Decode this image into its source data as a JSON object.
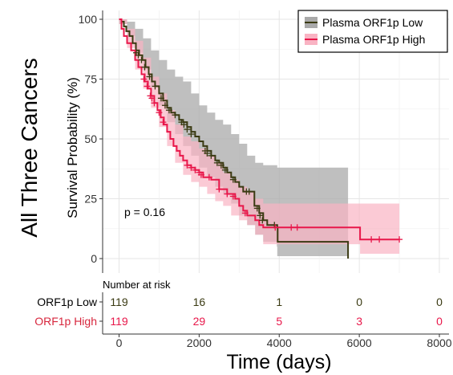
{
  "chart_data": {
    "type": "line",
    "subtype": "kaplan-meier",
    "side_title": "All Three Cancers",
    "ylabel": "Survival Probability (%)",
    "xlabel": "Time (days)",
    "p_value_text": "p = 0.16",
    "xlim": [
      0,
      8000
    ],
    "ylim": [
      0,
      100
    ],
    "x_ticks": [
      0,
      2000,
      4000,
      6000,
      8000
    ],
    "y_ticks": [
      0,
      25,
      50,
      75,
      100
    ],
    "grid": true,
    "legend_position": "top-right",
    "series": [
      {
        "name": "Plasma ORF1p Low",
        "color": "#3a3a12",
        "band_color": "#a9a9a9",
        "curve": [
          [
            0,
            100
          ],
          [
            60,
            99
          ],
          [
            120,
            97
          ],
          [
            180,
            95
          ],
          [
            260,
            93
          ],
          [
            340,
            90
          ],
          [
            420,
            87
          ],
          [
            500,
            85
          ],
          [
            580,
            83
          ],
          [
            660,
            80
          ],
          [
            740,
            77
          ],
          [
            820,
            74
          ],
          [
            900,
            72
          ],
          [
            1000,
            69
          ],
          [
            1100,
            66
          ],
          [
            1200,
            63
          ],
          [
            1300,
            61
          ],
          [
            1400,
            60
          ],
          [
            1500,
            58
          ],
          [
            1600,
            57
          ],
          [
            1700,
            55
          ],
          [
            1800,
            53
          ],
          [
            1900,
            51
          ],
          [
            2000,
            49
          ],
          [
            2100,
            47
          ],
          [
            2200,
            45
          ],
          [
            2300,
            43
          ],
          [
            2400,
            41
          ],
          [
            2500,
            40
          ],
          [
            2600,
            38
          ],
          [
            2700,
            36
          ],
          [
            2800,
            34
          ],
          [
            2900,
            32
          ],
          [
            3000,
            30
          ],
          [
            3100,
            28
          ],
          [
            3300,
            28
          ],
          [
            3380,
            22
          ],
          [
            3500,
            19
          ],
          [
            3600,
            16
          ],
          [
            3700,
            14
          ],
          [
            3940,
            14
          ],
          [
            3950,
            13
          ],
          [
            3960,
            7
          ],
          [
            5700,
            7
          ],
          [
            5720,
            0
          ]
        ],
        "ci_upper": [
          [
            0,
            100
          ],
          [
            200,
            99
          ],
          [
            400,
            96
          ],
          [
            600,
            92
          ],
          [
            800,
            87
          ],
          [
            1000,
            83
          ],
          [
            1200,
            79
          ],
          [
            1400,
            76
          ],
          [
            1600,
            74
          ],
          [
            1800,
            69
          ],
          [
            2000,
            64
          ],
          [
            2200,
            61
          ],
          [
            2400,
            58
          ],
          [
            2600,
            56
          ],
          [
            2800,
            52
          ],
          [
            3000,
            48
          ],
          [
            3200,
            43
          ],
          [
            3400,
            40
          ],
          [
            3600,
            39
          ],
          [
            3940,
            39
          ],
          [
            3950,
            38
          ],
          [
            5720,
            38
          ]
        ],
        "ci_lower": [
          [
            0,
            98
          ],
          [
            200,
            93
          ],
          [
            400,
            86
          ],
          [
            600,
            79
          ],
          [
            800,
            72
          ],
          [
            1000,
            64
          ],
          [
            1200,
            57
          ],
          [
            1400,
            52
          ],
          [
            1600,
            47
          ],
          [
            1800,
            43
          ],
          [
            2000,
            38
          ],
          [
            2200,
            34
          ],
          [
            2400,
            30
          ],
          [
            2600,
            27
          ],
          [
            2800,
            23
          ],
          [
            3000,
            18
          ],
          [
            3200,
            14
          ],
          [
            3400,
            10
          ],
          [
            3600,
            7
          ],
          [
            3940,
            5
          ],
          [
            3950,
            1
          ],
          [
            5720,
            1
          ]
        ],
        "censor_marks": [
          [
            430,
            86
          ],
          [
            480,
            85
          ],
          [
            560,
            83
          ],
          [
            640,
            80
          ],
          [
            760,
            76
          ],
          [
            900,
            72
          ],
          [
            1050,
            67
          ],
          [
            1150,
            64
          ],
          [
            1250,
            62
          ],
          [
            1400,
            60
          ],
          [
            1560,
            57
          ],
          [
            1620,
            56
          ],
          [
            1700,
            54
          ],
          [
            1800,
            52
          ],
          [
            2150,
            45
          ],
          [
            2200,
            44
          ],
          [
            2300,
            43
          ],
          [
            2450,
            40
          ],
          [
            2550,
            39
          ],
          [
            2650,
            37
          ],
          [
            2850,
            33
          ],
          [
            3180,
            28
          ],
          [
            3250,
            28
          ],
          [
            3450,
            21
          ],
          [
            3520,
            18
          ],
          [
            3580,
            16
          ],
          [
            3880,
            14
          ]
        ],
        "risk_counts": [
          119,
          16,
          1,
          0,
          0
        ]
      },
      {
        "name": "Plasma ORF1p High",
        "color": "#e8174a",
        "band_color": "#f9b3c3",
        "curve": [
          [
            0,
            100
          ],
          [
            60,
            96
          ],
          [
            120,
            93
          ],
          [
            200,
            90
          ],
          [
            300,
            87
          ],
          [
            400,
            83
          ],
          [
            480,
            80
          ],
          [
            560,
            77
          ],
          [
            640,
            74
          ],
          [
            720,
            71
          ],
          [
            800,
            68
          ],
          [
            880,
            65
          ],
          [
            960,
            62
          ],
          [
            1040,
            59
          ],
          [
            1120,
            56
          ],
          [
            1200,
            53
          ],
          [
            1280,
            50
          ],
          [
            1360,
            47
          ],
          [
            1440,
            45
          ],
          [
            1520,
            43
          ],
          [
            1600,
            41
          ],
          [
            1700,
            39
          ],
          [
            1800,
            38
          ],
          [
            1900,
            37
          ],
          [
            2000,
            36
          ],
          [
            2100,
            34
          ],
          [
            2300,
            33
          ],
          [
            2500,
            29
          ],
          [
            2700,
            27
          ],
          [
            2900,
            25
          ],
          [
            3000,
            22
          ],
          [
            3100,
            20
          ],
          [
            3200,
            18
          ],
          [
            3400,
            16
          ],
          [
            3500,
            14
          ],
          [
            3600,
            13
          ],
          [
            6000,
            13
          ],
          [
            6020,
            8
          ],
          [
            7000,
            8
          ]
        ],
        "ci_upper": [
          [
            0,
            100
          ],
          [
            200,
            96
          ],
          [
            400,
            91
          ],
          [
            600,
            84
          ],
          [
            800,
            76
          ],
          [
            1000,
            69
          ],
          [
            1200,
            62
          ],
          [
            1400,
            56
          ],
          [
            1600,
            51
          ],
          [
            1800,
            49
          ],
          [
            2000,
            46
          ],
          [
            2200,
            43
          ],
          [
            2400,
            40
          ],
          [
            2600,
            36
          ],
          [
            2800,
            33
          ],
          [
            3000,
            30
          ],
          [
            3200,
            28
          ],
          [
            3400,
            25
          ],
          [
            3600,
            23
          ],
          [
            6000,
            23
          ],
          [
            7000,
            23
          ]
        ],
        "ci_lower": [
          [
            0,
            98
          ],
          [
            200,
            88
          ],
          [
            400,
            79
          ],
          [
            600,
            71
          ],
          [
            800,
            63
          ],
          [
            1000,
            55
          ],
          [
            1200,
            47
          ],
          [
            1400,
            40
          ],
          [
            1600,
            35
          ],
          [
            1800,
            32
          ],
          [
            2000,
            30
          ],
          [
            2200,
            27
          ],
          [
            2400,
            24
          ],
          [
            2600,
            22
          ],
          [
            2800,
            18
          ],
          [
            3000,
            16
          ],
          [
            3200,
            14
          ],
          [
            3400,
            10
          ],
          [
            3600,
            6
          ],
          [
            6000,
            6
          ],
          [
            6020,
            2
          ],
          [
            7000,
            2
          ]
        ],
        "censor_marks": [
          [
            620,
            75
          ],
          [
            700,
            72
          ],
          [
            780,
            68
          ],
          [
            820,
            67
          ],
          [
            880,
            65
          ],
          [
            1000,
            61
          ],
          [
            1100,
            57
          ],
          [
            1700,
            39
          ],
          [
            1800,
            38
          ],
          [
            1900,
            37
          ],
          [
            2000,
            36
          ],
          [
            2050,
            35
          ],
          [
            2250,
            34
          ],
          [
            2500,
            29
          ],
          [
            2700,
            27
          ],
          [
            2850,
            26
          ],
          [
            3150,
            19
          ],
          [
            3900,
            13
          ],
          [
            4300,
            13
          ],
          [
            4450,
            13
          ],
          [
            6300,
            8
          ],
          [
            6500,
            8
          ],
          [
            7000,
            8
          ]
        ],
        "risk_counts": [
          119,
          29,
          5,
          3,
          0
        ]
      }
    ],
    "risk_table": {
      "title": "Number at risk",
      "times": [
        0,
        2000,
        4000,
        6000,
        8000
      ],
      "row_labels": [
        "ORF1p Low",
        "ORF1p High"
      ],
      "row_colors": [
        "#000000",
        "#d7263d"
      ],
      "count_colors": [
        "#3a3a12",
        "#e8174a"
      ]
    }
  }
}
